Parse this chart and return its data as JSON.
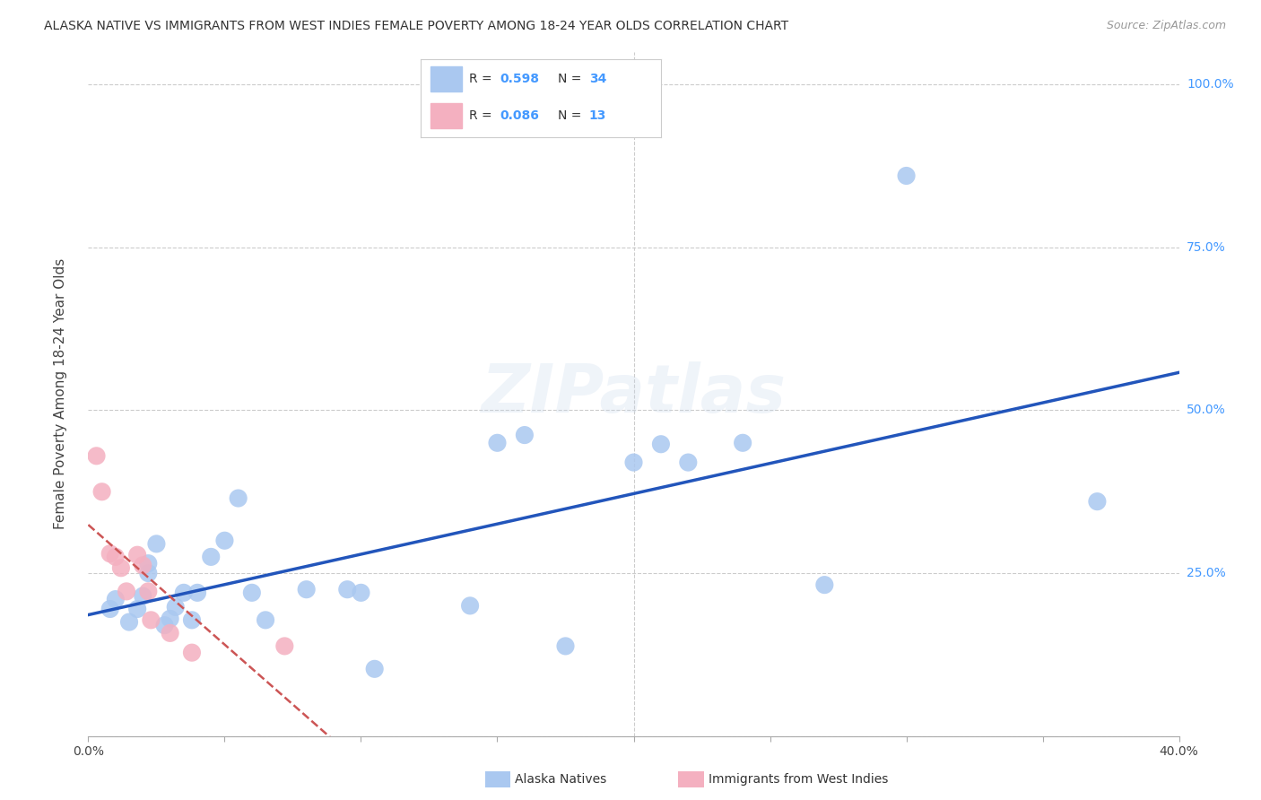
{
  "title": "ALASKA NATIVE VS IMMIGRANTS FROM WEST INDIES FEMALE POVERTY AMONG 18-24 YEAR OLDS CORRELATION CHART",
  "source": "Source: ZipAtlas.com",
  "ylabel": "Female Poverty Among 18-24 Year Olds",
  "xlim": [
    0.0,
    0.4
  ],
  "ylim": [
    0.0,
    1.05
  ],
  "background_color": "#ffffff",
  "grid_color": "#cccccc",
  "watermark": "ZIPatlas",
  "blue_scatter": "#aac8f0",
  "pink_scatter": "#f4b0c0",
  "line_blue": "#2255bb",
  "line_pink": "#cc5555",
  "blue_text": "#4499ff",
  "R1": "0.598",
  "N1": "34",
  "R2": "0.086",
  "N2": "13",
  "legend_label1": "Alaska Natives",
  "legend_label2": "Immigrants from West Indies",
  "alaska_x": [
    0.008,
    0.01,
    0.015,
    0.018,
    0.02,
    0.022,
    0.022,
    0.025,
    0.028,
    0.03,
    0.032,
    0.035,
    0.038,
    0.04,
    0.045,
    0.05,
    0.055,
    0.06,
    0.065,
    0.08,
    0.095,
    0.1,
    0.105,
    0.14,
    0.15,
    0.16,
    0.175,
    0.2,
    0.21,
    0.22,
    0.24,
    0.27,
    0.3,
    0.37
  ],
  "alaska_y": [
    0.195,
    0.21,
    0.175,
    0.195,
    0.215,
    0.25,
    0.265,
    0.295,
    0.17,
    0.18,
    0.198,
    0.22,
    0.178,
    0.22,
    0.275,
    0.3,
    0.365,
    0.22,
    0.178,
    0.225,
    0.225,
    0.22,
    0.103,
    0.2,
    0.45,
    0.462,
    0.138,
    0.42,
    0.448,
    0.42,
    0.45,
    0.232,
    0.86,
    0.36
  ],
  "wi_x": [
    0.003,
    0.005,
    0.008,
    0.01,
    0.012,
    0.014,
    0.018,
    0.02,
    0.022,
    0.023,
    0.03,
    0.038,
    0.072
  ],
  "wi_y": [
    0.43,
    0.375,
    0.28,
    0.275,
    0.258,
    0.222,
    0.278,
    0.262,
    0.222,
    0.178,
    0.158,
    0.128,
    0.138
  ]
}
